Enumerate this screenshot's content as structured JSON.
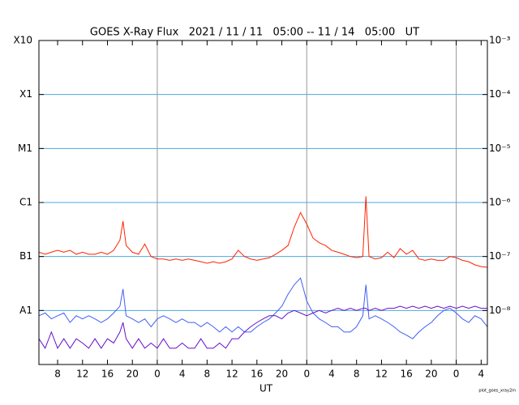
{
  "chart_data": {
    "type": "line",
    "title": "GOES X-Ray Flux   2021 / 11 / 11   05:00 -- 11 / 14   05:00   UT",
    "x_label": "UT",
    "footnote": "plot_goes_xray2m",
    "log_scale": true,
    "grid": true,
    "grid_color": "#4aa8e0",
    "day_line_color": "#999999",
    "day_lines": [
      19,
      43,
      67
    ],
    "xlim": [
      0,
      72
    ],
    "xticks": [
      {
        "value": 3,
        "label": "8"
      },
      {
        "value": 7,
        "label": "12"
      },
      {
        "value": 11,
        "label": "16"
      },
      {
        "value": 15,
        "label": "20"
      },
      {
        "value": 19,
        "label": "0"
      },
      {
        "value": 23,
        "label": "4"
      },
      {
        "value": 27,
        "label": "8"
      },
      {
        "value": 31,
        "label": "12"
      },
      {
        "value": 35,
        "label": "16"
      },
      {
        "value": 39,
        "label": "20"
      },
      {
        "value": 43,
        "label": "0"
      },
      {
        "value": 47,
        "label": "4"
      },
      {
        "value": 51,
        "label": "8"
      },
      {
        "value": 55,
        "label": "12"
      },
      {
        "value": 59,
        "label": "16"
      },
      {
        "value": 63,
        "label": "20"
      },
      {
        "value": 67,
        "label": "0"
      },
      {
        "value": 71,
        "label": "4"
      }
    ],
    "ylim": [
      1e-09,
      0.001
    ],
    "yticks": [
      {
        "value": 0.001,
        "label": "X10"
      },
      {
        "value": 0.0001,
        "label": "X1"
      },
      {
        "value": 1e-05,
        "label": "M1"
      },
      {
        "value": 1e-06,
        "label": "C1"
      },
      {
        "value": 1e-07,
        "label": "B1"
      },
      {
        "value": 1e-08,
        "label": "A1"
      }
    ],
    "y2lim": [
      1e-09,
      0.001
    ],
    "y2ticks": [
      {
        "value": 0.001,
        "label": "10⁻³"
      },
      {
        "value": 0.0001,
        "label": "10⁻⁴"
      },
      {
        "value": 1e-05,
        "label": "10⁻⁵"
      },
      {
        "value": 1e-06,
        "label": "10⁻⁶"
      },
      {
        "value": 1e-07,
        "label": "10⁻⁷"
      },
      {
        "value": 1e-08,
        "label": "10⁻⁸"
      }
    ],
    "x": [
      0,
      1,
      2,
      3,
      4,
      5,
      6,
      7,
      8,
      9,
      10,
      11,
      12,
      13,
      13.5,
      14,
      15,
      16,
      17,
      18,
      19,
      20,
      21,
      22,
      23,
      24,
      25,
      26,
      27,
      28,
      29,
      30,
      31,
      32,
      33,
      34,
      35,
      36,
      37,
      38,
      39,
      40,
      41,
      42,
      43,
      44,
      45,
      46,
      47,
      48,
      49,
      50,
      51,
      52,
      52.5,
      53,
      54,
      55,
      56,
      57,
      58,
      59,
      60,
      61,
      62,
      63,
      64,
      65,
      66,
      67,
      68,
      69,
      70,
      71,
      72
    ],
    "series": [
      {
        "color": "#ff2200",
        "values": [
          1.2e-07,
          1.1e-07,
          1.2e-07,
          1.3e-07,
          1.2e-07,
          1.3e-07,
          1.1e-07,
          1.2e-07,
          1.1e-07,
          1.1e-07,
          1.2e-07,
          1.1e-07,
          1.3e-07,
          2e-07,
          4.5e-07,
          1.6e-07,
          1.2e-07,
          1.1e-07,
          1.7e-07,
          1e-07,
          9e-08,
          9e-08,
          8.5e-08,
          9e-08,
          8.5e-08,
          9e-08,
          8.5e-08,
          8e-08,
          7.5e-08,
          8e-08,
          7.5e-08,
          8e-08,
          9e-08,
          1.3e-07,
          1e-07,
          9e-08,
          8.5e-08,
          9e-08,
          9.5e-08,
          1.1e-07,
          1.3e-07,
          1.6e-07,
          3.5e-07,
          6.5e-07,
          4e-07,
          2.2e-07,
          1.8e-07,
          1.6e-07,
          1.3e-07,
          1.2e-07,
          1.1e-07,
          1e-07,
          9.5e-08,
          1e-07,
          1.3e-06,
          1e-07,
          9e-08,
          9.5e-08,
          1.2e-07,
          9.5e-08,
          1.4e-07,
          1.1e-07,
          1.3e-07,
          9e-08,
          8.5e-08,
          9e-08,
          8.5e-08,
          8.5e-08,
          1e-07,
          9.5e-08,
          8.5e-08,
          8e-08,
          7e-08,
          6.5e-08,
          6.3e-08
        ]
      },
      {
        "color": "#3f5ff5",
        "values": [
          8e-09,
          9e-09,
          7e-09,
          8e-09,
          9e-09,
          6e-09,
          8e-09,
          7e-09,
          8e-09,
          7e-09,
          6e-09,
          7e-09,
          9e-09,
          1.2e-08,
          2.5e-08,
          8e-09,
          7e-09,
          6e-09,
          7e-09,
          5e-09,
          7e-09,
          8e-09,
          7e-09,
          6e-09,
          7e-09,
          6e-09,
          6e-09,
          5e-09,
          6e-09,
          5e-09,
          4e-09,
          5e-09,
          4e-09,
          5e-09,
          4e-09,
          4e-09,
          5e-09,
          6e-09,
          7e-09,
          9e-09,
          1.2e-08,
          2e-08,
          3e-08,
          4e-08,
          1.5e-08,
          9e-09,
          7e-09,
          6e-09,
          5e-09,
          5e-09,
          4e-09,
          4e-09,
          5e-09,
          8e-09,
          3e-08,
          7e-09,
          8e-09,
          7e-09,
          6e-09,
          5e-09,
          4e-09,
          3.5e-09,
          3e-09,
          4e-09,
          5e-09,
          6e-09,
          8e-09,
          1e-08,
          1.1e-08,
          9e-09,
          7e-09,
          6e-09,
          8e-09,
          7e-09,
          5e-09
        ]
      },
      {
        "color": "#6a0fc8",
        "values": [
          3e-09,
          2e-09,
          4e-09,
          2e-09,
          3e-09,
          2e-09,
          3e-09,
          2.5e-09,
          2e-09,
          3e-09,
          2e-09,
          3e-09,
          2.5e-09,
          4e-09,
          6e-09,
          3e-09,
          2e-09,
          3e-09,
          2e-09,
          2.5e-09,
          2e-09,
          3e-09,
          2e-09,
          2e-09,
          2.5e-09,
          2e-09,
          2e-09,
          3e-09,
          2e-09,
          2e-09,
          2.5e-09,
          2e-09,
          3e-09,
          3e-09,
          4e-09,
          5e-09,
          6e-09,
          7e-09,
          8e-09,
          8e-09,
          7e-09,
          9e-09,
          1e-08,
          9e-09,
          8e-09,
          9e-09,
          1e-08,
          9e-09,
          1e-08,
          1.1e-08,
          1e-08,
          1.1e-08,
          1e-08,
          1.1e-08,
          1.1e-08,
          1e-08,
          1.1e-08,
          1e-08,
          1.1e-08,
          1.1e-08,
          1.2e-08,
          1.1e-08,
          1.2e-08,
          1.1e-08,
          1.2e-08,
          1.1e-08,
          1.2e-08,
          1.1e-08,
          1.2e-08,
          1.1e-08,
          1.2e-08,
          1.1e-08,
          1.2e-08,
          1.1e-08,
          1.1e-08
        ]
      }
    ]
  }
}
